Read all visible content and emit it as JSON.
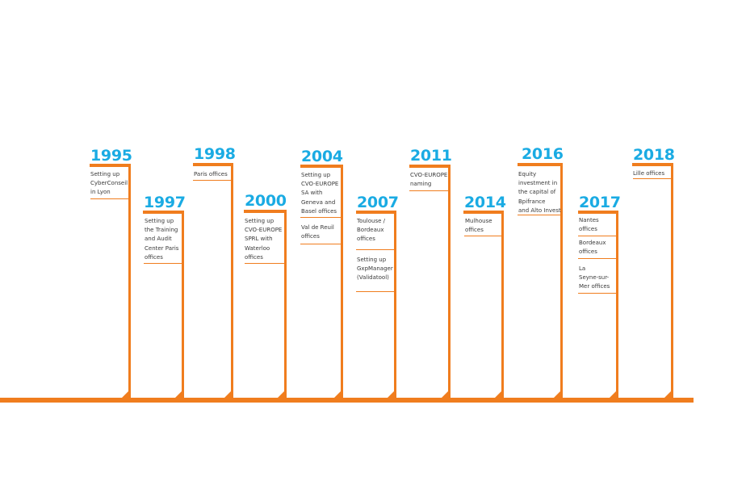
{
  "accent_color": "#f07d1e",
  "year_color": "#1aabe3",
  "milestones": [
    {
      "year": "1995",
      "entries": [
        "Setting up\nCyberConseil\nin Lyon"
      ]
    },
    {
      "year": "1997",
      "entries": [
        "Setting up\nthe Training\nand Audit\nCenter Paris\noffices"
      ]
    },
    {
      "year": "1998",
      "entries": [
        "Paris offices"
      ]
    },
    {
      "year": "2000",
      "entries": [
        "Setting up\nCVO-EUROPE\nSPRL with\nWaterloo\noffices"
      ]
    },
    {
      "year": "2004",
      "entries": [
        "Setting up\nCVO-EUROPE\nSA with\nGeneva and\nBasel offices",
        "Val de Reuil\noffices"
      ]
    },
    {
      "year": "2007",
      "entries": [
        "Toulouse /\nBordeaux\noffices",
        "Setting up\nGxpManager\n(Validatool)"
      ]
    },
    {
      "year": "2011",
      "entries": [
        "CVO-EUROPE\nnaming"
      ]
    },
    {
      "year": "2014",
      "entries": [
        "Mulhouse\noffices"
      ]
    },
    {
      "year": "2016",
      "entries": [
        "Equity\ninvestment in\nthe capital of\nBpifrance\nand Alto Invest"
      ]
    },
    {
      "year": "2017",
      "entries": [
        "Nantes\noffices",
        "Bordeaux\noffices",
        "La\nSeyne-sur-\nMer offices"
      ]
    },
    {
      "year": "2018",
      "entries": [
        "Lille offices"
      ]
    }
  ]
}
